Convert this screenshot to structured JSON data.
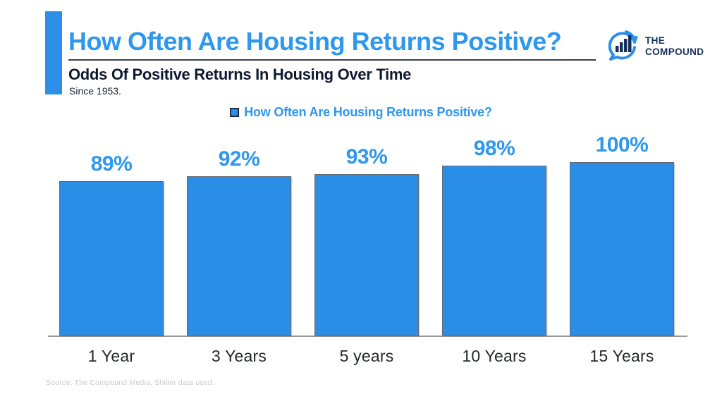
{
  "header": {
    "title": "How Often Are Housing Returns Positive?",
    "subtitle": "Odds Of Positive Returns In Housing Over Time",
    "subnote": "Since 1953."
  },
  "logo": {
    "line1": "THE",
    "line2": "COMPOUND",
    "icon": "compound-chart-bubble-icon"
  },
  "legend": {
    "label": "How Often Are Housing Returns Positive?"
  },
  "chart_data": {
    "type": "bar",
    "categories": [
      "1 Year",
      "3 Years",
      "5 years",
      "10 Years",
      "15 Years"
    ],
    "values": [
      89,
      92,
      93,
      98,
      100
    ],
    "value_labels": [
      "89%",
      "92%",
      "93%",
      "98%",
      "100%"
    ],
    "title": "How Often Are Housing Returns Positive?",
    "xlabel": "",
    "ylabel": "",
    "ylim": [
      0,
      100
    ],
    "grid": false,
    "legend_position": "top-center",
    "bar_color": "#2B8EE6",
    "bar_border_color": "#66696e",
    "value_label_color": "#2E97EE",
    "axis_line_color": "#9a9a9a"
  },
  "colors": {
    "accent_blue": "#2D8FE7",
    "title_blue": "#2E97EE",
    "navy": "#16305C",
    "subtitle_navy": "#10182f"
  },
  "footer": {
    "source": "Source: The Compound Media, Shiller data used."
  }
}
